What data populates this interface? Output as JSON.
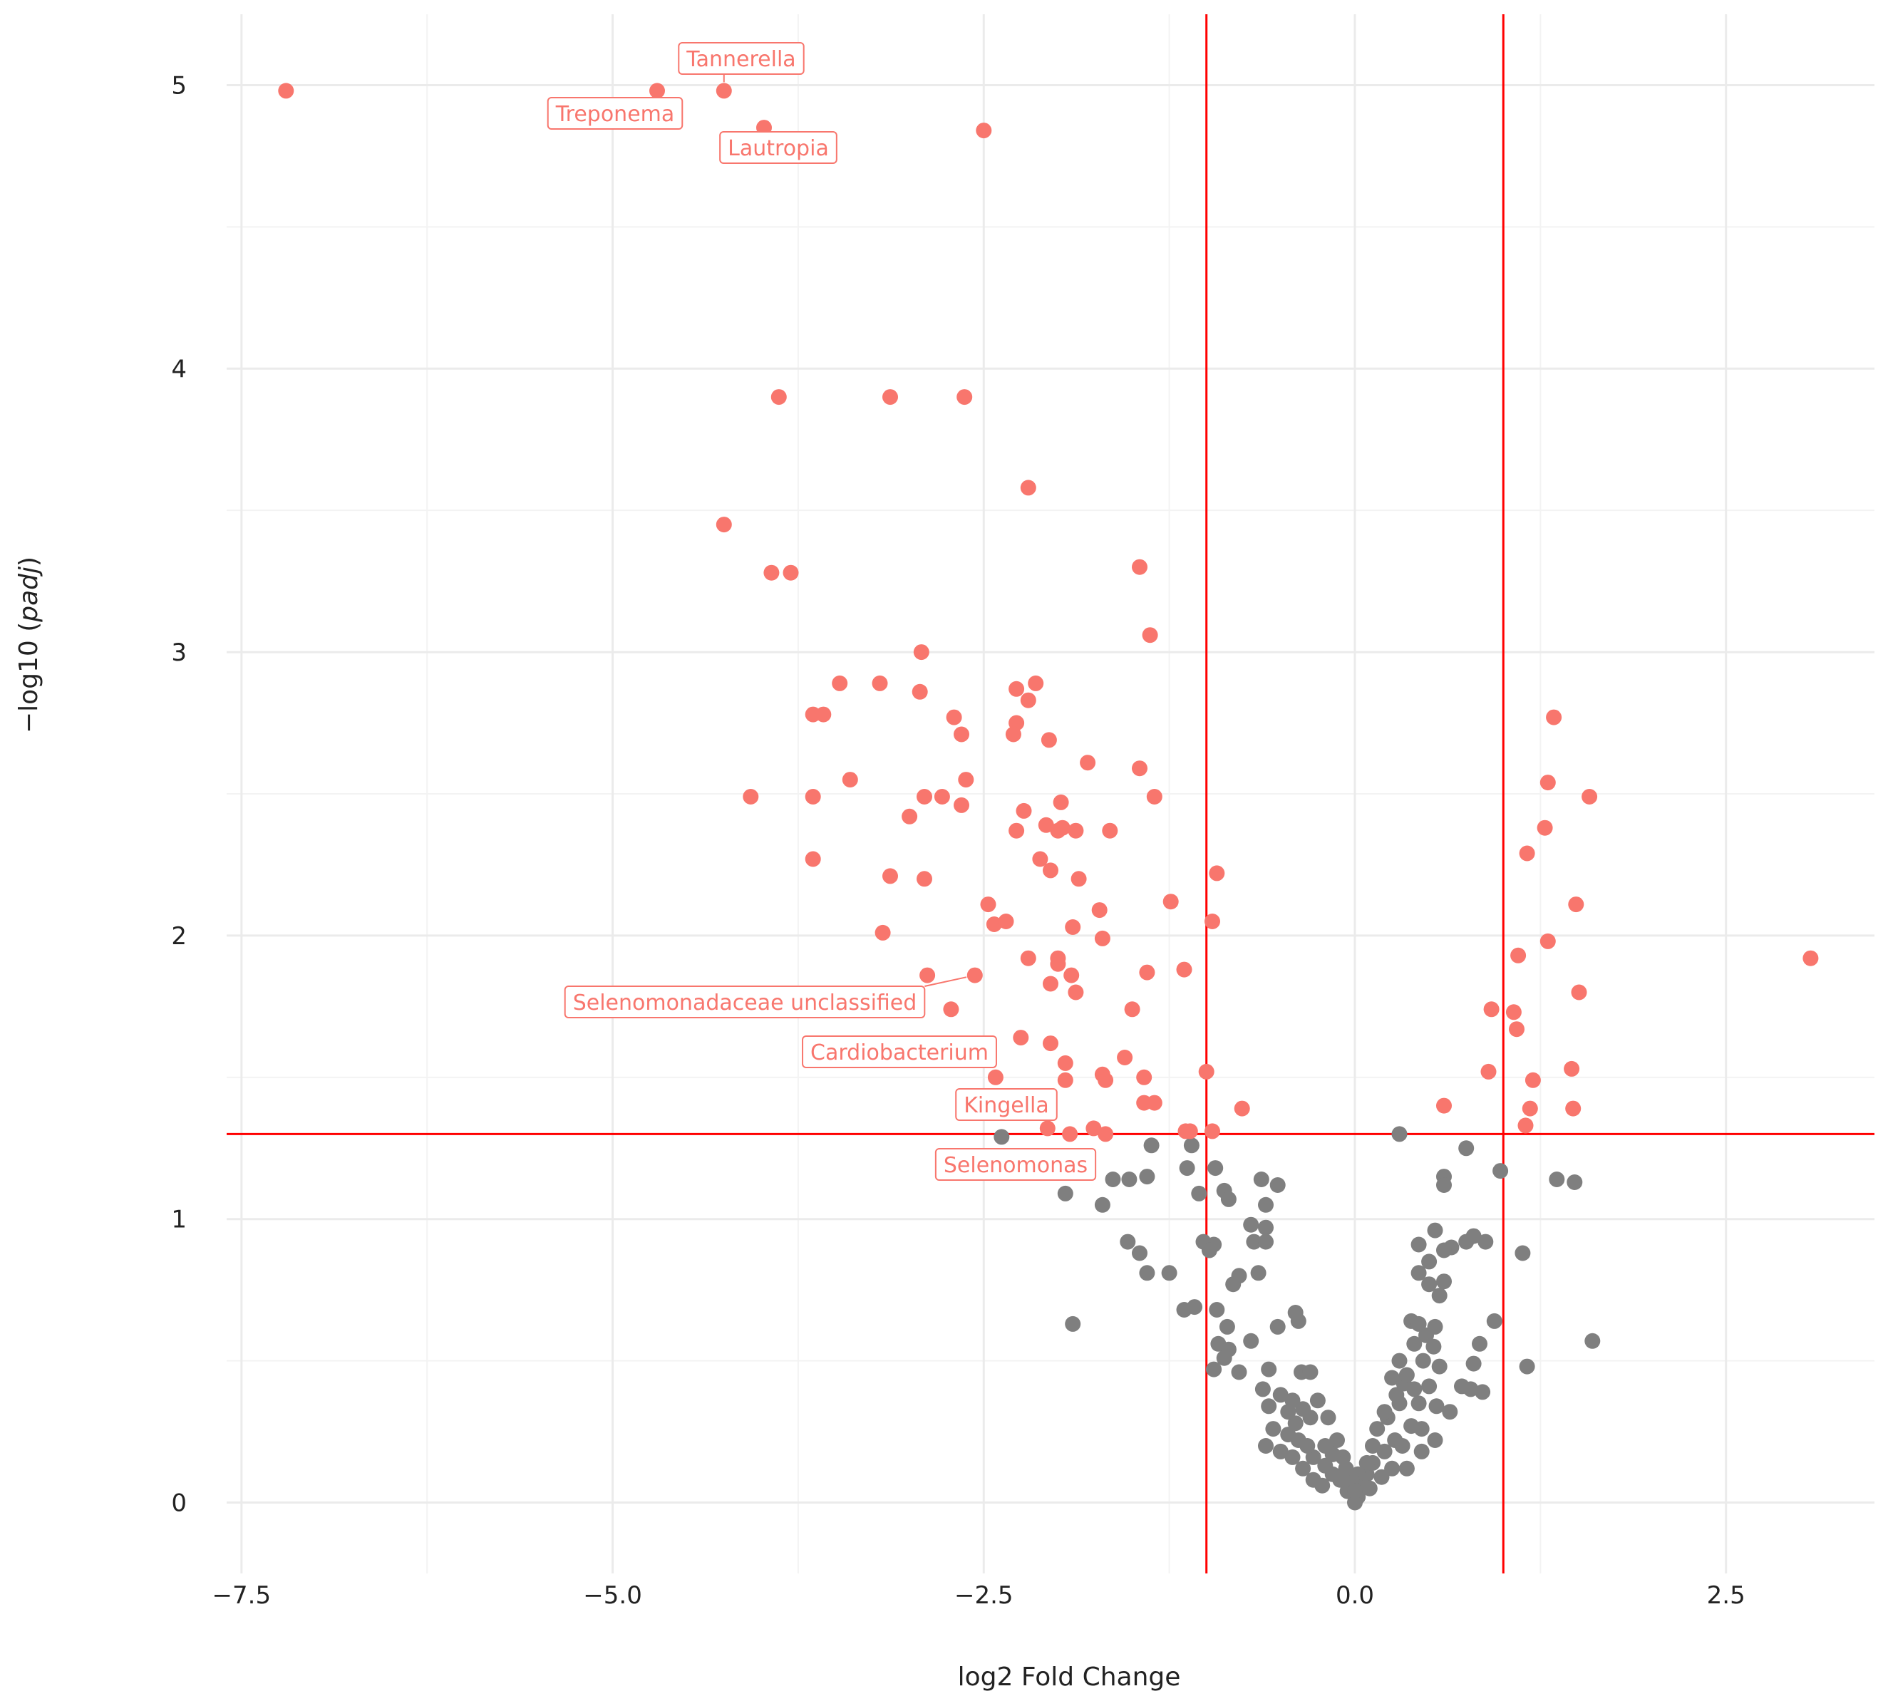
{
  "chart_data": {
    "type": "scatter",
    "title": "",
    "xlabel": "log2 Fold Change",
    "ylabel_prefix": "−log10 (",
    "ylabel_italic": "padj",
    "ylabel_suffix": ")",
    "xlim": [
      -7.6,
      3.5
    ],
    "ylim": [
      -0.25,
      5.25
    ],
    "x_ticks": [
      -7.5,
      -5.0,
      -2.5,
      0.0,
      2.5
    ],
    "x_tick_labels": [
      "−7.5",
      "−5.0",
      "−2.5",
      "0.0",
      "2.5"
    ],
    "y_ticks": [
      0,
      1,
      2,
      3,
      4,
      5
    ],
    "y_tick_labels": [
      "0",
      "1",
      "2",
      "3",
      "4",
      "5"
    ],
    "grid": true,
    "threshold_lines": {
      "x": [
        -1,
        1
      ],
      "y": 1.3,
      "color": "#FF0000"
    },
    "colors": {
      "significant": "#F8766D",
      "not_significant": "#7F7F7F"
    },
    "series": [
      {
        "color": "#F8766D",
        "points": [
          [
            -7.2,
            4.98
          ],
          [
            -4.7,
            4.98
          ],
          [
            -4.25,
            4.98
          ],
          [
            -3.98,
            4.85
          ],
          [
            -2.5,
            4.84
          ],
          [
            -3.88,
            3.9
          ],
          [
            -3.13,
            3.9
          ],
          [
            -2.63,
            3.9
          ],
          [
            -2.2,
            3.58
          ],
          [
            -4.25,
            3.45
          ],
          [
            -3.93,
            3.28
          ],
          [
            -3.8,
            3.28
          ],
          [
            -1.45,
            3.3
          ],
          [
            -1.38,
            3.06
          ],
          [
            -2.92,
            3.0
          ],
          [
            -3.47,
            2.89
          ],
          [
            -3.2,
            2.89
          ],
          [
            -2.15,
            2.89
          ],
          [
            -2.28,
            2.87
          ],
          [
            -2.93,
            2.86
          ],
          [
            -2.2,
            2.83
          ],
          [
            -3.65,
            2.78
          ],
          [
            -3.58,
            2.78
          ],
          [
            -2.7,
            2.77
          ],
          [
            -2.28,
            2.75
          ],
          [
            -2.65,
            2.71
          ],
          [
            -2.3,
            2.71
          ],
          [
            -2.06,
            2.69
          ],
          [
            1.34,
            2.77
          ],
          [
            -1.8,
            2.61
          ],
          [
            -1.45,
            2.59
          ],
          [
            -4.07,
            2.49
          ],
          [
            -3.65,
            2.49
          ],
          [
            -2.9,
            2.49
          ],
          [
            -2.78,
            2.49
          ],
          [
            -3.4,
            2.55
          ],
          [
            -2.62,
            2.55
          ],
          [
            -1.35,
            2.49
          ],
          [
            -2.65,
            2.46
          ],
          [
            -1.98,
            2.47
          ],
          [
            -2.23,
            2.44
          ],
          [
            -3.0,
            2.42
          ],
          [
            -2.08,
            2.39
          ],
          [
            -1.97,
            2.38
          ],
          [
            -1.88,
            2.37
          ],
          [
            -2.28,
            2.37
          ],
          [
            -2.0,
            2.37
          ],
          [
            -1.65,
            2.37
          ],
          [
            1.3,
            2.54
          ],
          [
            1.58,
            2.49
          ],
          [
            1.28,
            2.38
          ],
          [
            1.16,
            2.29
          ],
          [
            -3.65,
            2.27
          ],
          [
            -2.12,
            2.27
          ],
          [
            -2.05,
            2.23
          ],
          [
            -3.13,
            2.21
          ],
          [
            -2.9,
            2.2
          ],
          [
            -1.86,
            2.2
          ],
          [
            -0.93,
            2.22
          ],
          [
            -2.47,
            2.11
          ],
          [
            -1.24,
            2.12
          ],
          [
            1.49,
            2.11
          ],
          [
            -1.72,
            2.09
          ],
          [
            -2.43,
            2.04
          ],
          [
            -2.35,
            2.05
          ],
          [
            -0.96,
            2.05
          ],
          [
            -1.9,
            2.03
          ],
          [
            -3.18,
            2.01
          ],
          [
            -1.7,
            1.99
          ],
          [
            1.3,
            1.98
          ],
          [
            -2.2,
            1.92
          ],
          [
            -2.0,
            1.92
          ],
          [
            -2.0,
            1.9
          ],
          [
            1.1,
            1.93
          ],
          [
            3.07,
            1.92
          ],
          [
            -2.88,
            1.86
          ],
          [
            -2.56,
            1.86
          ],
          [
            -1.91,
            1.86
          ],
          [
            -1.4,
            1.87
          ],
          [
            -1.15,
            1.88
          ],
          [
            -2.05,
            1.83
          ],
          [
            -1.88,
            1.8
          ],
          [
            1.51,
            1.8
          ],
          [
            -2.72,
            1.74
          ],
          [
            -1.5,
            1.74
          ],
          [
            0.92,
            1.74
          ],
          [
            1.07,
            1.73
          ],
          [
            1.09,
            1.67
          ],
          [
            -2.25,
            1.64
          ],
          [
            -2.05,
            1.62
          ],
          [
            -1.55,
            1.57
          ],
          [
            -1.95,
            1.55
          ],
          [
            -2.42,
            1.5
          ],
          [
            -1.95,
            1.49
          ],
          [
            -1.7,
            1.51
          ],
          [
            -1.68,
            1.49
          ],
          [
            -1.42,
            1.5
          ],
          [
            -1.0,
            1.52
          ],
          [
            0.9,
            1.52
          ],
          [
            1.46,
            1.53
          ],
          [
            1.2,
            1.49
          ],
          [
            -1.42,
            1.41
          ],
          [
            -1.35,
            1.41
          ],
          [
            -0.76,
            1.39
          ],
          [
            0.6,
            1.4
          ],
          [
            1.18,
            1.39
          ],
          [
            1.47,
            1.39
          ],
          [
            1.15,
            1.33
          ],
          [
            -2.07,
            1.32
          ],
          [
            -1.76,
            1.32
          ],
          [
            -1.14,
            1.31
          ],
          [
            -1.11,
            1.31
          ],
          [
            -0.96,
            1.31
          ],
          [
            -1.92,
            1.3
          ],
          [
            -1.68,
            1.3
          ]
        ]
      },
      {
        "color": "#7F7F7F",
        "points": [
          [
            -2.38,
            1.29
          ],
          [
            -1.37,
            1.26
          ],
          [
            -1.1,
            1.26
          ],
          [
            -2.19,
            1.18
          ],
          [
            -1.13,
            1.18
          ],
          [
            -0.94,
            1.18
          ],
          [
            -1.4,
            1.15
          ],
          [
            -1.52,
            1.14
          ],
          [
            -1.63,
            1.14
          ],
          [
            -0.63,
            1.14
          ],
          [
            -0.52,
            1.12
          ],
          [
            -1.95,
            1.09
          ],
          [
            -1.05,
            1.09
          ],
          [
            -0.88,
            1.1
          ],
          [
            -0.85,
            1.07
          ],
          [
            -1.7,
            1.05
          ],
          [
            -0.6,
            1.05
          ],
          [
            -0.7,
            0.98
          ],
          [
            -0.6,
            0.97
          ],
          [
            -1.53,
            0.92
          ],
          [
            -1.02,
            0.92
          ],
          [
            -0.68,
            0.92
          ],
          [
            -0.6,
            0.92
          ],
          [
            -0.95,
            0.91
          ],
          [
            -1.45,
            0.88
          ],
          [
            -0.98,
            0.89
          ],
          [
            -1.4,
            0.81
          ],
          [
            -1.25,
            0.81
          ],
          [
            -0.78,
            0.8
          ],
          [
            -0.82,
            0.77
          ],
          [
            -0.65,
            0.81
          ],
          [
            -1.15,
            0.68
          ],
          [
            -1.08,
            0.69
          ],
          [
            -0.93,
            0.68
          ],
          [
            -0.4,
            0.67
          ],
          [
            -0.38,
            0.64
          ],
          [
            -1.9,
            0.63
          ],
          [
            -0.86,
            0.62
          ],
          [
            -0.52,
            0.62
          ],
          [
            -0.92,
            0.56
          ],
          [
            -0.85,
            0.54
          ],
          [
            -0.7,
            0.57
          ],
          [
            -0.88,
            0.51
          ],
          [
            -0.95,
            0.47
          ],
          [
            -0.78,
            0.46
          ],
          [
            -0.58,
            0.47
          ],
          [
            -0.36,
            0.46
          ],
          [
            -0.3,
            0.46
          ],
          [
            0.3,
            1.3
          ],
          [
            0.75,
            1.25
          ],
          [
            0.98,
            1.17
          ],
          [
            0.6,
            1.15
          ],
          [
            0.6,
            1.12
          ],
          [
            1.36,
            1.14
          ],
          [
            1.48,
            1.13
          ],
          [
            0.54,
            0.96
          ],
          [
            0.8,
            0.94
          ],
          [
            0.75,
            0.92
          ],
          [
            0.88,
            0.92
          ],
          [
            0.65,
            0.9
          ],
          [
            0.6,
            0.89
          ],
          [
            0.43,
            0.91
          ],
          [
            0.5,
            0.85
          ],
          [
            0.43,
            0.81
          ],
          [
            0.6,
            0.78
          ],
          [
            0.5,
            0.77
          ],
          [
            0.57,
            0.73
          ],
          [
            1.13,
            0.88
          ],
          [
            0.94,
            0.64
          ],
          [
            0.38,
            0.64
          ],
          [
            0.43,
            0.63
          ],
          [
            0.54,
            0.62
          ],
          [
            0.48,
            0.59
          ],
          [
            0.4,
            0.56
          ],
          [
            0.53,
            0.55
          ],
          [
            0.84,
            0.56
          ],
          [
            1.6,
            0.57
          ],
          [
            0.3,
            0.5
          ],
          [
            0.46,
            0.5
          ],
          [
            0.57,
            0.48
          ],
          [
            0.8,
            0.49
          ],
          [
            1.16,
            0.48
          ],
          [
            0.25,
            0.44
          ],
          [
            0.33,
            0.42
          ],
          [
            0.4,
            0.4
          ],
          [
            0.5,
            0.41
          ],
          [
            0.72,
            0.41
          ],
          [
            0.78,
            0.4
          ],
          [
            0.86,
            0.39
          ],
          [
            0.3,
            0.35
          ],
          [
            0.43,
            0.35
          ],
          [
            0.55,
            0.34
          ],
          [
            0.64,
            0.32
          ],
          [
            0.22,
            0.3
          ],
          [
            0.38,
            0.27
          ],
          [
            0.45,
            0.26
          ],
          [
            0.27,
            0.22
          ],
          [
            0.54,
            0.22
          ],
          [
            0.32,
            0.2
          ],
          [
            0.45,
            0.18
          ],
          [
            0.2,
            0.18
          ],
          [
            0.12,
            0.14
          ],
          [
            0.25,
            0.12
          ],
          [
            0.35,
            0.12
          ],
          [
            0.08,
            0.1
          ],
          [
            0.18,
            0.09
          ],
          [
            0.05,
            0.06
          ],
          [
            0.1,
            0.05
          ],
          [
            0.02,
            0.02
          ],
          [
            0.0,
            0.0
          ],
          [
            -0.05,
            0.04
          ],
          [
            -0.1,
            0.08
          ],
          [
            -0.15,
            0.1
          ],
          [
            -0.2,
            0.13
          ],
          [
            -0.28,
            0.16
          ],
          [
            -0.32,
            0.2
          ],
          [
            -0.38,
            0.22
          ],
          [
            -0.45,
            0.24
          ],
          [
            -0.55,
            0.26
          ],
          [
            -0.3,
            0.3
          ],
          [
            -0.35,
            0.33
          ],
          [
            -0.42,
            0.36
          ],
          [
            -0.5,
            0.38
          ],
          [
            -0.62,
            0.4
          ],
          [
            -0.25,
            0.36
          ],
          [
            -0.18,
            0.3
          ],
          [
            -0.12,
            0.22
          ],
          [
            -0.08,
            0.16
          ],
          [
            -0.22,
            0.06
          ],
          [
            -0.28,
            0.08
          ],
          [
            -0.35,
            0.12
          ],
          [
            -0.42,
            0.16
          ],
          [
            -0.5,
            0.18
          ],
          [
            -0.6,
            0.2
          ],
          [
            -0.15,
            0.17
          ],
          [
            -0.2,
            0.2
          ],
          [
            -0.4,
            0.28
          ],
          [
            -0.45,
            0.32
          ],
          [
            -0.58,
            0.34
          ],
          [
            0.15,
            0.26
          ],
          [
            0.2,
            0.32
          ],
          [
            0.28,
            0.38
          ],
          [
            0.35,
            0.45
          ],
          [
            0.12,
            0.2
          ],
          [
            0.08,
            0.14
          ],
          [
            0.02,
            0.1
          ],
          [
            -0.02,
            0.08
          ],
          [
            -0.06,
            0.12
          ],
          [
            0.0,
            0.04
          ]
        ]
      }
    ],
    "annotations": [
      {
        "label": "Tannerella",
        "x": -4.25,
        "y": 4.98
      },
      {
        "label": "Treponema",
        "x": -4.7,
        "y": 4.98
      },
      {
        "label": "Lautropia",
        "x": -3.98,
        "y": 4.85
      },
      {
        "label": "Selenomonadaceae_unclassified",
        "x": -2.56,
        "y": 1.86
      },
      {
        "label": "Cardiobacterium",
        "x": -2.42,
        "y": 1.5
      },
      {
        "label": "Kingella",
        "x": -2.07,
        "y": 1.32
      },
      {
        "label": "Selenomonas",
        "x": -2.19,
        "y": 1.18
      }
    ]
  }
}
